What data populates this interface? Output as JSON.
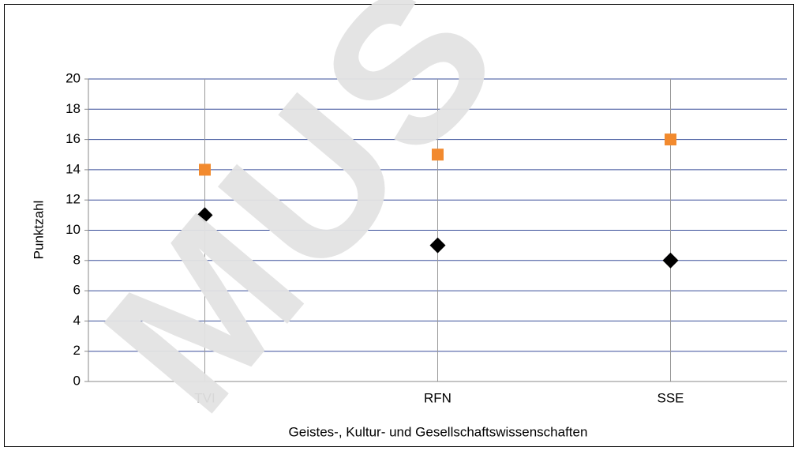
{
  "chart_data": {
    "type": "scatter",
    "x_label": "Geistes-, Kultur- und Gesellschaftswissenschaften",
    "y_label": "Punktzahl",
    "categories": [
      "TVI",
      "RFN",
      "SSE"
    ],
    "series": [
      {
        "color": "#f28a2e",
        "marker": "square",
        "values": [
          14,
          15,
          16
        ]
      },
      {
        "color": "#000000",
        "marker": "diamond",
        "values": [
          11,
          9,
          8
        ]
      }
    ],
    "ylim": [
      0,
      20
    ],
    "yticks": [
      0,
      2,
      4,
      6,
      8,
      10,
      12,
      14,
      16,
      18,
      20
    ],
    "grid": true,
    "watermark": "MUS"
  }
}
